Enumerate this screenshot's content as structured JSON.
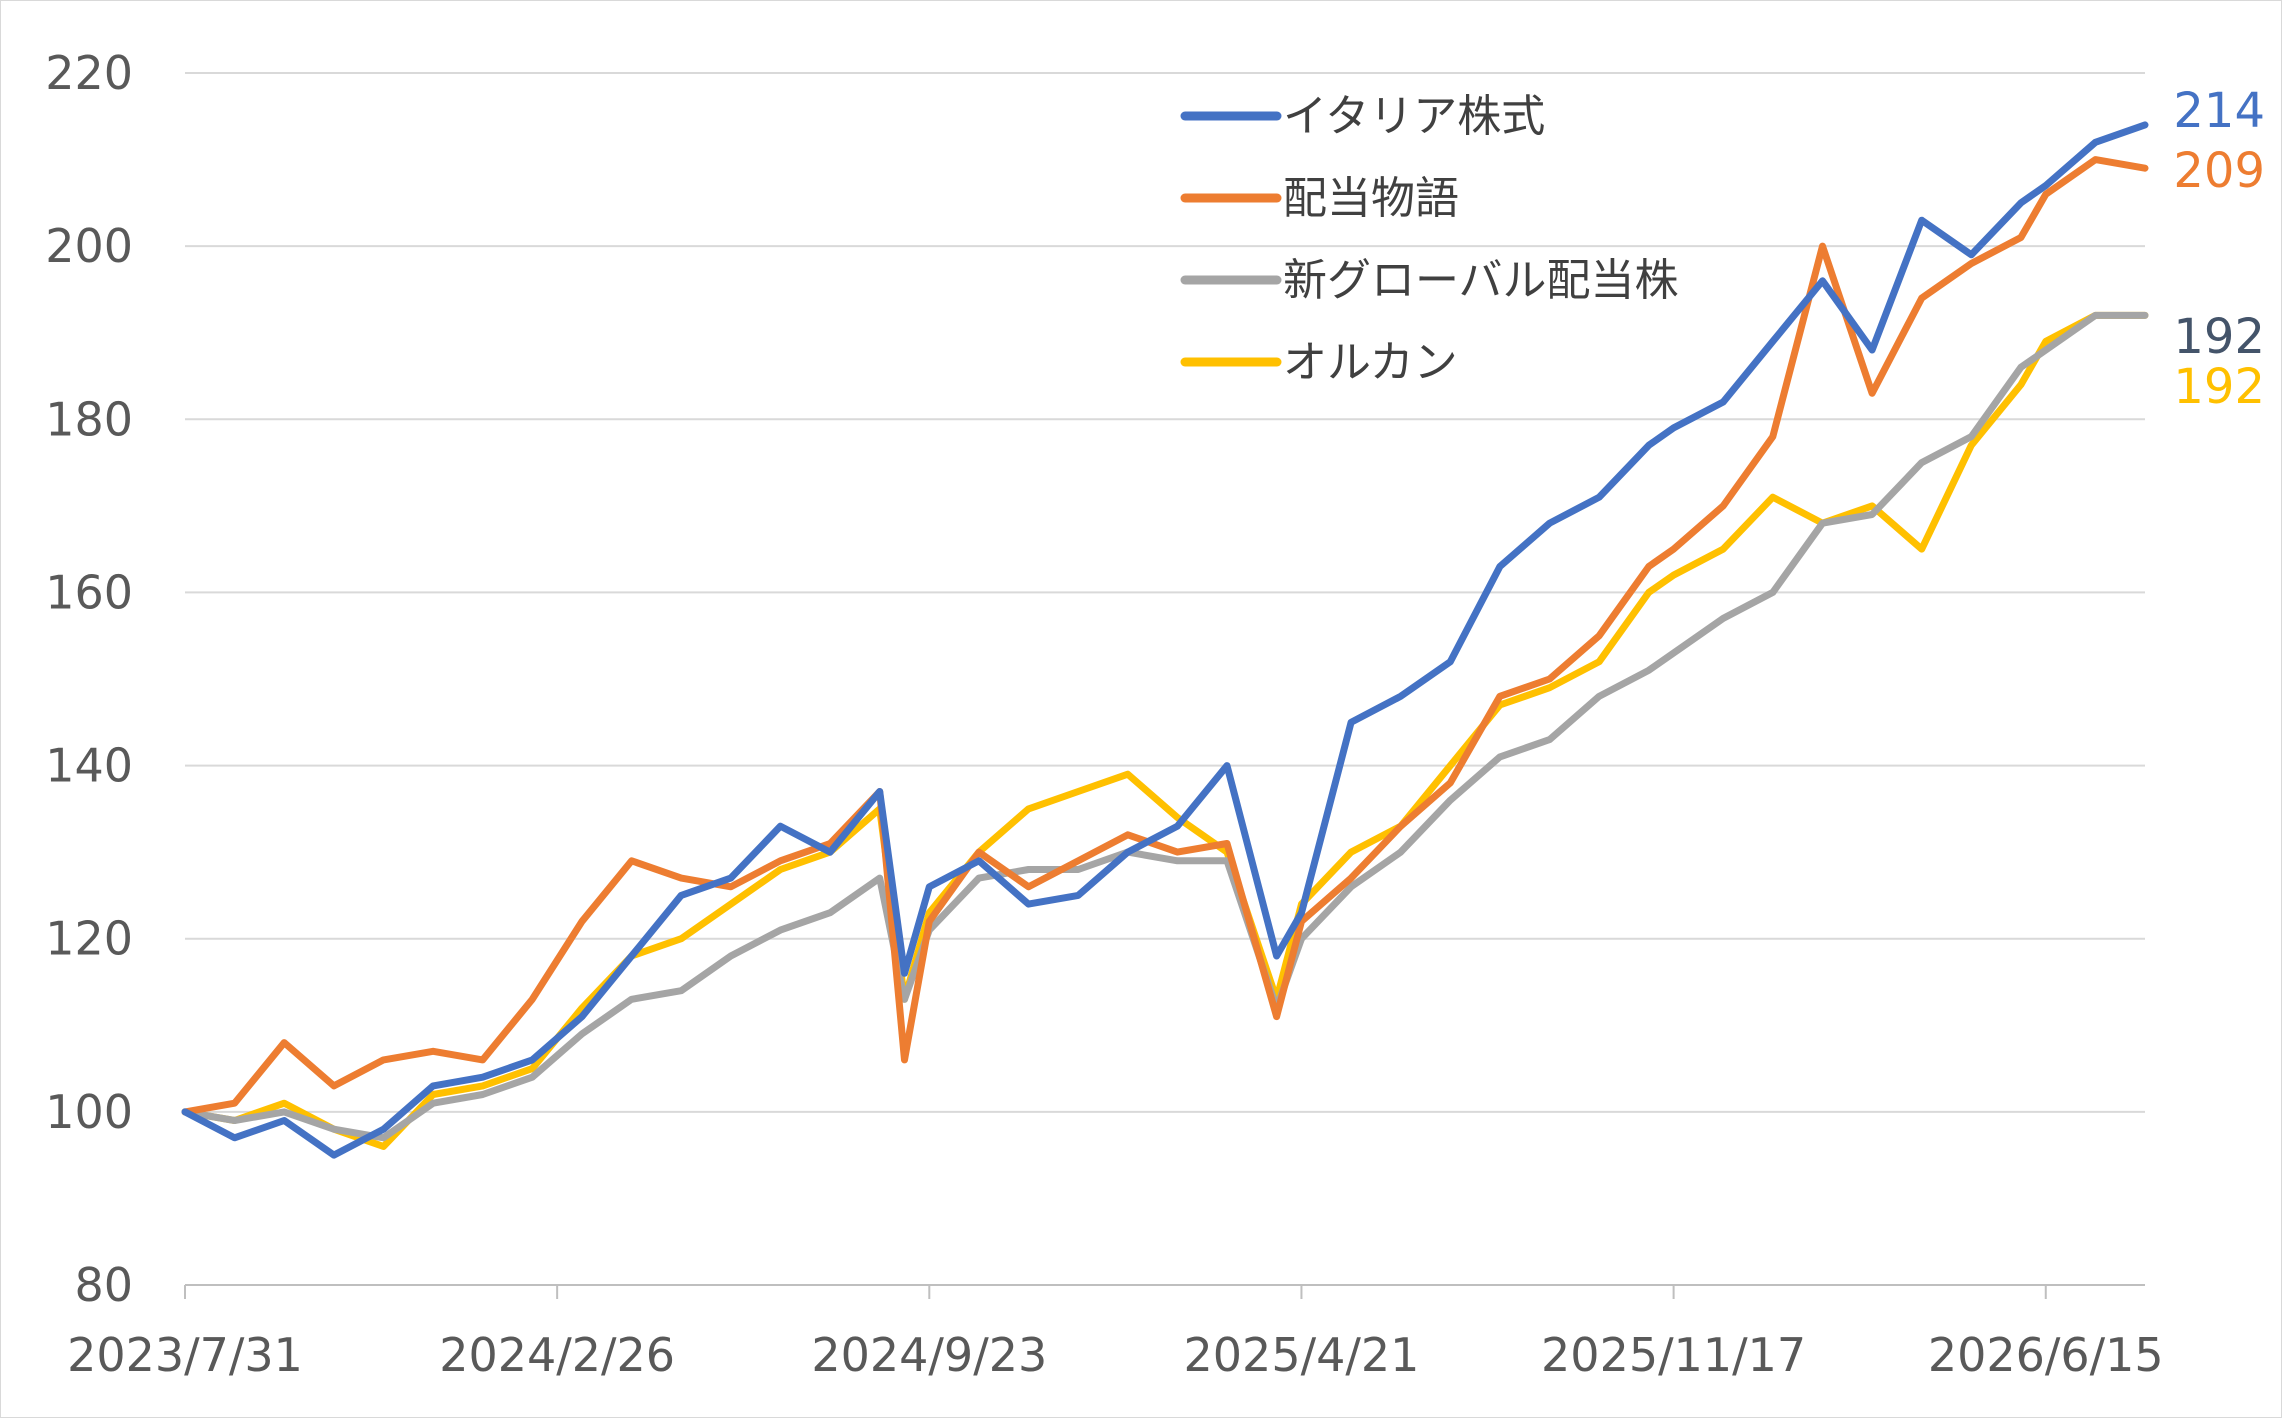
{
  "chart_data": {
    "type": "line",
    "title": "",
    "xlabel": "",
    "ylabel": "",
    "ylim": [
      80,
      220
    ],
    "y_ticks": [
      "80",
      "100",
      "120",
      "140",
      "160",
      "180",
      "200",
      "220"
    ],
    "x_start_date": "2023-07-31",
    "x_end_date": "2026-08-10",
    "x_tick_labels": [
      "2023/7/31",
      "2024/2/26",
      "2024/9/23",
      "2025/4/21",
      "2025/11/17",
      "2026/6/15"
    ],
    "grid": true,
    "legend_position": "top-right (inside plot)",
    "series": [
      {
        "name": "イタリア株式",
        "color": "#4472C4",
        "end_label": "214",
        "end_label_color": "#4472C4",
        "values": [
          [
            "2023-07-31",
            100
          ],
          [
            "2023-08-28",
            97
          ],
          [
            "2023-09-25",
            99
          ],
          [
            "2023-10-23",
            95
          ],
          [
            "2023-11-20",
            98
          ],
          [
            "2023-12-18",
            103
          ],
          [
            "2024-01-15",
            104
          ],
          [
            "2024-02-12",
            106
          ],
          [
            "2024-03-11",
            111
          ],
          [
            "2024-04-08",
            118
          ],
          [
            "2024-05-06",
            125
          ],
          [
            "2024-06-03",
            127
          ],
          [
            "2024-07-01",
            133
          ],
          [
            "2024-07-29",
            130
          ],
          [
            "2024-08-26",
            137
          ],
          [
            "2024-09-09",
            116
          ],
          [
            "2024-09-23",
            126
          ],
          [
            "2024-10-21",
            129
          ],
          [
            "2024-11-18",
            124
          ],
          [
            "2024-12-16",
            125
          ],
          [
            "2025-01-13",
            130
          ],
          [
            "2025-02-10",
            133
          ],
          [
            "2025-03-10",
            140
          ],
          [
            "2025-04-07",
            118
          ],
          [
            "2025-04-21",
            123
          ],
          [
            "2025-05-19",
            145
          ],
          [
            "2025-06-16",
            148
          ],
          [
            "2025-07-14",
            152
          ],
          [
            "2025-08-11",
            163
          ],
          [
            "2025-09-08",
            168
          ],
          [
            "2025-10-06",
            171
          ],
          [
            "2025-11-03",
            177
          ],
          [
            "2025-11-17",
            179
          ],
          [
            "2025-12-15",
            182
          ],
          [
            "2026-01-12",
            189
          ],
          [
            "2026-02-09",
            196
          ],
          [
            "2026-03-09",
            188
          ],
          [
            "2026-04-06",
            203
          ],
          [
            "2026-05-04",
            199
          ],
          [
            "2026-06-01",
            205
          ],
          [
            "2026-06-15",
            207
          ],
          [
            "2026-07-13",
            212
          ],
          [
            "2026-08-10",
            214
          ]
        ]
      },
      {
        "name": "配当物語",
        "color": "#ED7D31",
        "end_label": "209",
        "end_label_color": "#ED7D31",
        "values": [
          [
            "2023-07-31",
            100
          ],
          [
            "2023-08-28",
            101
          ],
          [
            "2023-09-25",
            108
          ],
          [
            "2023-10-23",
            103
          ],
          [
            "2023-11-20",
            106
          ],
          [
            "2023-12-18",
            107
          ],
          [
            "2024-01-15",
            106
          ],
          [
            "2024-02-12",
            113
          ],
          [
            "2024-03-11",
            122
          ],
          [
            "2024-04-08",
            129
          ],
          [
            "2024-05-06",
            127
          ],
          [
            "2024-06-03",
            126
          ],
          [
            "2024-07-01",
            129
          ],
          [
            "2024-07-29",
            131
          ],
          [
            "2024-08-26",
            137
          ],
          [
            "2024-09-09",
            106
          ],
          [
            "2024-09-23",
            122
          ],
          [
            "2024-10-21",
            130
          ],
          [
            "2024-11-18",
            126
          ],
          [
            "2024-12-16",
            129
          ],
          [
            "2025-01-13",
            132
          ],
          [
            "2025-02-10",
            130
          ],
          [
            "2025-03-10",
            131
          ],
          [
            "2025-04-07",
            111
          ],
          [
            "2025-04-21",
            122
          ],
          [
            "2025-05-19",
            127
          ],
          [
            "2025-06-16",
            133
          ],
          [
            "2025-07-14",
            138
          ],
          [
            "2025-08-11",
            148
          ],
          [
            "2025-09-08",
            150
          ],
          [
            "2025-10-06",
            155
          ],
          [
            "2025-11-03",
            163
          ],
          [
            "2025-11-17",
            165
          ],
          [
            "2025-12-15",
            170
          ],
          [
            "2026-01-12",
            178
          ],
          [
            "2026-02-09",
            200
          ],
          [
            "2026-03-09",
            183
          ],
          [
            "2026-04-06",
            194
          ],
          [
            "2026-05-04",
            198
          ],
          [
            "2026-06-01",
            201
          ],
          [
            "2026-06-15",
            206
          ],
          [
            "2026-07-13",
            210
          ],
          [
            "2026-08-10",
            209
          ]
        ]
      },
      {
        "name": "新グローバル配当株",
        "color": "#A5A5A5",
        "end_label": "192",
        "end_label_color": "#44546A",
        "values": [
          [
            "2023-07-31",
            100
          ],
          [
            "2023-08-28",
            99
          ],
          [
            "2023-09-25",
            100
          ],
          [
            "2023-10-23",
            98
          ],
          [
            "2023-11-20",
            97
          ],
          [
            "2023-12-18",
            101
          ],
          [
            "2024-01-15",
            102
          ],
          [
            "2024-02-12",
            104
          ],
          [
            "2024-03-11",
            109
          ],
          [
            "2024-04-08",
            113
          ],
          [
            "2024-05-06",
            114
          ],
          [
            "2024-06-03",
            118
          ],
          [
            "2024-07-01",
            121
          ],
          [
            "2024-07-29",
            123
          ],
          [
            "2024-08-26",
            127
          ],
          [
            "2024-09-09",
            113
          ],
          [
            "2024-09-23",
            121
          ],
          [
            "2024-10-21",
            127
          ],
          [
            "2024-11-18",
            128
          ],
          [
            "2024-12-16",
            128
          ],
          [
            "2025-01-13",
            130
          ],
          [
            "2025-02-10",
            129
          ],
          [
            "2025-03-10",
            129
          ],
          [
            "2025-04-07",
            112
          ],
          [
            "2025-04-21",
            120
          ],
          [
            "2025-05-19",
            126
          ],
          [
            "2025-06-16",
            130
          ],
          [
            "2025-07-14",
            136
          ],
          [
            "2025-08-11",
            141
          ],
          [
            "2025-09-08",
            143
          ],
          [
            "2025-10-06",
            148
          ],
          [
            "2025-11-03",
            151
          ],
          [
            "2025-11-17",
            153
          ],
          [
            "2025-12-15",
            157
          ],
          [
            "2026-01-12",
            160
          ],
          [
            "2026-02-09",
            168
          ],
          [
            "2026-03-09",
            169
          ],
          [
            "2026-04-06",
            175
          ],
          [
            "2026-05-04",
            178
          ],
          [
            "2026-06-01",
            186
          ],
          [
            "2026-06-15",
            188
          ],
          [
            "2026-07-13",
            192
          ],
          [
            "2026-08-10",
            192
          ]
        ]
      },
      {
        "name": "オルカン",
        "color": "#FFC000",
        "end_label": "192",
        "end_label_color": "#FFC000",
        "values": [
          [
            "2023-07-31",
            100
          ],
          [
            "2023-08-28",
            99
          ],
          [
            "2023-09-25",
            101
          ],
          [
            "2023-10-23",
            98
          ],
          [
            "2023-11-20",
            96
          ],
          [
            "2023-12-18",
            102
          ],
          [
            "2024-01-15",
            103
          ],
          [
            "2024-02-12",
            105
          ],
          [
            "2024-03-11",
            112
          ],
          [
            "2024-04-08",
            118
          ],
          [
            "2024-05-06",
            120
          ],
          [
            "2024-06-03",
            124
          ],
          [
            "2024-07-01",
            128
          ],
          [
            "2024-07-29",
            130
          ],
          [
            "2024-08-26",
            135
          ],
          [
            "2024-09-09",
            113
          ],
          [
            "2024-09-23",
            123
          ],
          [
            "2024-10-21",
            130
          ],
          [
            "2024-11-18",
            135
          ],
          [
            "2024-12-16",
            137
          ],
          [
            "2025-01-13",
            139
          ],
          [
            "2025-02-10",
            134
          ],
          [
            "2025-03-10",
            130
          ],
          [
            "2025-04-07",
            113
          ],
          [
            "2025-04-21",
            124
          ],
          [
            "2025-05-19",
            130
          ],
          [
            "2025-06-16",
            133
          ],
          [
            "2025-07-14",
            140
          ],
          [
            "2025-08-11",
            147
          ],
          [
            "2025-09-08",
            149
          ],
          [
            "2025-10-06",
            152
          ],
          [
            "2025-11-03",
            160
          ],
          [
            "2025-11-17",
            162
          ],
          [
            "2025-12-15",
            165
          ],
          [
            "2026-01-12",
            171
          ],
          [
            "2026-02-09",
            168
          ],
          [
            "2026-03-09",
            170
          ],
          [
            "2026-04-06",
            165
          ],
          [
            "2026-05-04",
            177
          ],
          [
            "2026-06-01",
            184
          ],
          [
            "2026-06-15",
            189
          ],
          [
            "2026-07-13",
            192
          ],
          [
            "2026-08-10",
            192
          ]
        ]
      }
    ]
  }
}
